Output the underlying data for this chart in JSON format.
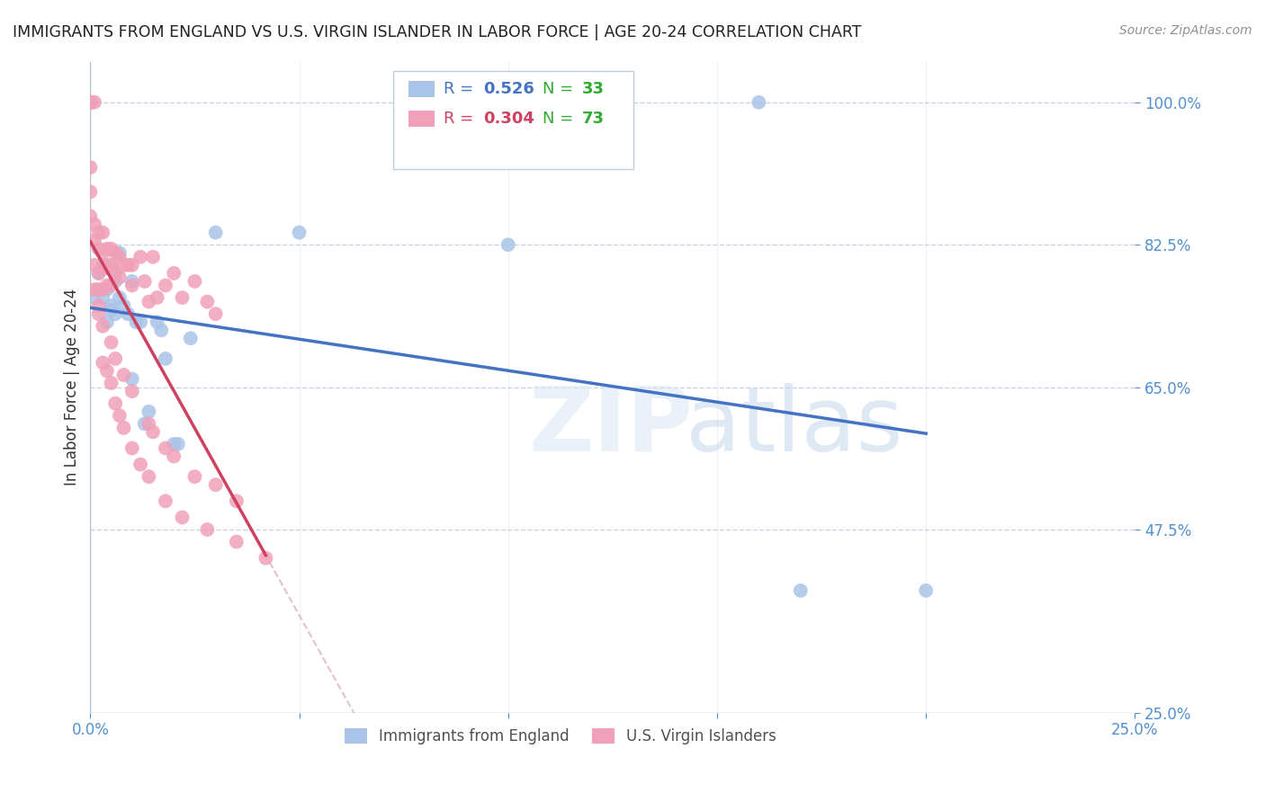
{
  "title": "IMMIGRANTS FROM ENGLAND VS U.S. VIRGIN ISLANDER IN LABOR FORCE | AGE 20-24 CORRELATION CHART",
  "source": "Source: ZipAtlas.com",
  "ylabel": "In Labor Force | Age 20-24",
  "xlim": [
    0.0,
    0.25
  ],
  "ylim": [
    0.25,
    1.05
  ],
  "england_R": 0.526,
  "england_N": 33,
  "virgin_R": 0.304,
  "virgin_N": 73,
  "england_color": "#aac4e8",
  "virgin_color": "#f0a0b8",
  "england_line_color": "#4472c4",
  "virgin_line_color": "#d04060",
  "virgin_dash_color": "#d8a8b8",
  "background_color": "#ffffff",
  "grid_color": "#c8d4e4",
  "title_color": "#222222",
  "axis_label_color": "#333333",
  "tick_color": "#5090d0",
  "england_x": [
    0.001,
    0.002,
    0.003,
    0.004,
    0.004,
    0.005,
    0.005,
    0.006,
    0.006,
    0.007,
    0.008,
    0.009,
    0.01,
    0.011,
    0.012,
    0.014,
    0.016,
    0.018,
    0.02,
    0.024,
    0.03,
    0.05,
    0.16,
    0.2,
    0.003,
    0.005,
    0.007,
    0.01,
    0.013,
    0.017,
    0.021,
    0.1,
    0.17
  ],
  "england_y": [
    0.76,
    0.79,
    0.8,
    0.77,
    0.73,
    0.795,
    0.75,
    0.78,
    0.74,
    0.815,
    0.75,
    0.74,
    0.78,
    0.73,
    0.73,
    0.62,
    0.73,
    0.685,
    0.58,
    0.71,
    0.84,
    0.84,
    1.0,
    0.4,
    0.76,
    0.745,
    0.76,
    0.66,
    0.605,
    0.72,
    0.58,
    0.825,
    0.4
  ],
  "virgin_x": [
    0.0,
    0.0,
    0.0,
    0.0,
    0.0,
    0.0,
    0.0,
    0.001,
    0.001,
    0.001,
    0.001,
    0.001,
    0.002,
    0.002,
    0.002,
    0.002,
    0.002,
    0.003,
    0.003,
    0.003,
    0.003,
    0.004,
    0.004,
    0.004,
    0.005,
    0.005,
    0.005,
    0.006,
    0.006,
    0.007,
    0.007,
    0.008,
    0.009,
    0.01,
    0.01,
    0.012,
    0.013,
    0.014,
    0.015,
    0.016,
    0.018,
    0.02,
    0.022,
    0.025,
    0.028,
    0.03,
    0.003,
    0.004,
    0.005,
    0.006,
    0.007,
    0.008,
    0.01,
    0.012,
    0.014,
    0.018,
    0.022,
    0.028,
    0.035,
    0.042,
    0.002,
    0.003,
    0.005,
    0.006,
    0.008,
    0.01,
    0.014,
    0.018,
    0.025,
    0.035,
    0.015,
    0.02,
    0.03
  ],
  "virgin_y": [
    1.0,
    1.0,
    1.0,
    1.0,
    0.92,
    0.89,
    0.86,
    1.0,
    0.85,
    0.83,
    0.8,
    0.77,
    0.84,
    0.82,
    0.79,
    0.77,
    0.75,
    0.84,
    0.815,
    0.795,
    0.77,
    0.82,
    0.8,
    0.775,
    0.82,
    0.8,
    0.775,
    0.815,
    0.79,
    0.81,
    0.785,
    0.8,
    0.8,
    0.8,
    0.775,
    0.81,
    0.78,
    0.755,
    0.81,
    0.76,
    0.775,
    0.79,
    0.76,
    0.78,
    0.755,
    0.74,
    0.68,
    0.67,
    0.655,
    0.63,
    0.615,
    0.6,
    0.575,
    0.555,
    0.54,
    0.51,
    0.49,
    0.475,
    0.46,
    0.44,
    0.74,
    0.725,
    0.705,
    0.685,
    0.665,
    0.645,
    0.605,
    0.575,
    0.54,
    0.51,
    0.595,
    0.565,
    0.53
  ],
  "legend_R1_color": "#4472c4",
  "legend_N1_color": "#33aa33",
  "legend_R2_color": "#d04060",
  "legend_N2_color": "#33aa33"
}
